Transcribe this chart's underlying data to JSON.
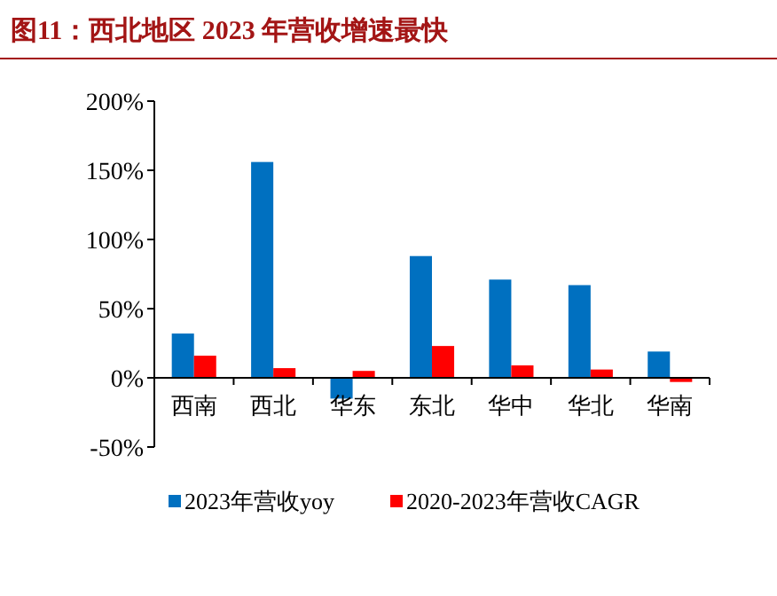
{
  "chart_data": {
    "type": "bar",
    "title": "图11：西北地区 2023 年营收增速最快",
    "categories": [
      "西南",
      "西北",
      "华东",
      "东北",
      "华中",
      "华北",
      "华南"
    ],
    "series": [
      {
        "name": "2023年营收yoy",
        "color": "#0070c0",
        "values": [
          32,
          156,
          -15,
          88,
          71,
          67,
          19
        ]
      },
      {
        "name": "2020-2023年营收CAGR",
        "color": "#ff0000",
        "values": [
          16,
          7,
          5,
          23,
          9,
          6,
          -3
        ]
      }
    ],
    "ylim": [
      -50,
      200
    ],
    "yticks": [
      {
        "value": -50,
        "label": "-50%"
      },
      {
        "value": 0,
        "label": "0%"
      },
      {
        "value": 50,
        "label": "50%"
      },
      {
        "value": 100,
        "label": "100%"
      },
      {
        "value": 150,
        "label": "150%"
      },
      {
        "value": 200,
        "label": "200%"
      }
    ],
    "grid": false,
    "legend": "bottom"
  }
}
